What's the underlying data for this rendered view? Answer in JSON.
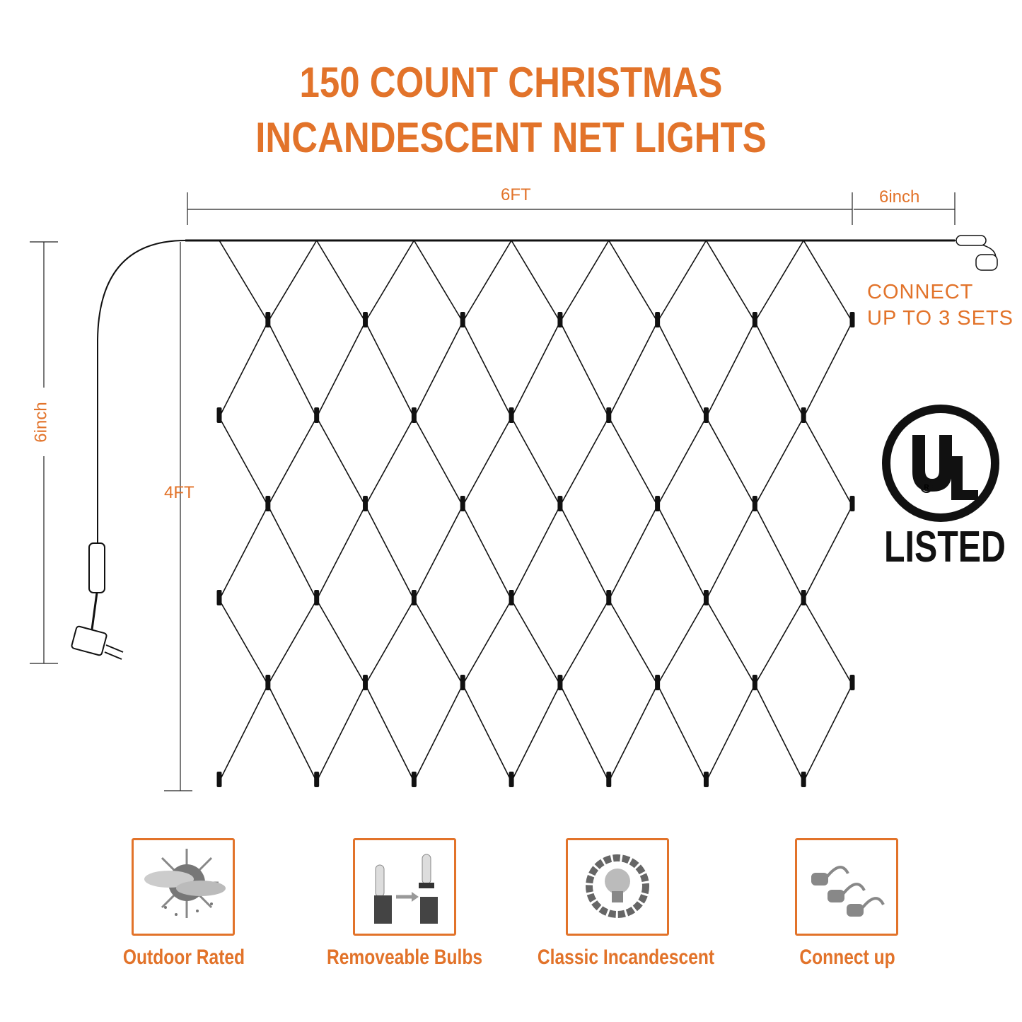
{
  "title": {
    "line1": "150 COUNT CHRISTMAS",
    "line2": "INCANDESCENT NET LIGHTS"
  },
  "dimensions": {
    "width": "6FT",
    "lead": "6inch",
    "height": "4FT",
    "cord": "6inch"
  },
  "connect_note": {
    "line1": "CONNECT",
    "line2": "UP TO 3 SETS"
  },
  "certification": {
    "mark": "UL",
    "label": "LISTED"
  },
  "features": [
    {
      "label": "Outdoor Rated",
      "icon": "weather-icon"
    },
    {
      "label": "Removeable Bulbs",
      "icon": "bulb-replace-icon"
    },
    {
      "label": "Classic Incandescent",
      "icon": "lightbulb-icon"
    },
    {
      "label": "Connect up",
      "icon": "plugs-icon"
    }
  ],
  "colors": {
    "accent": "#e2732a",
    "wire": "#111111"
  }
}
